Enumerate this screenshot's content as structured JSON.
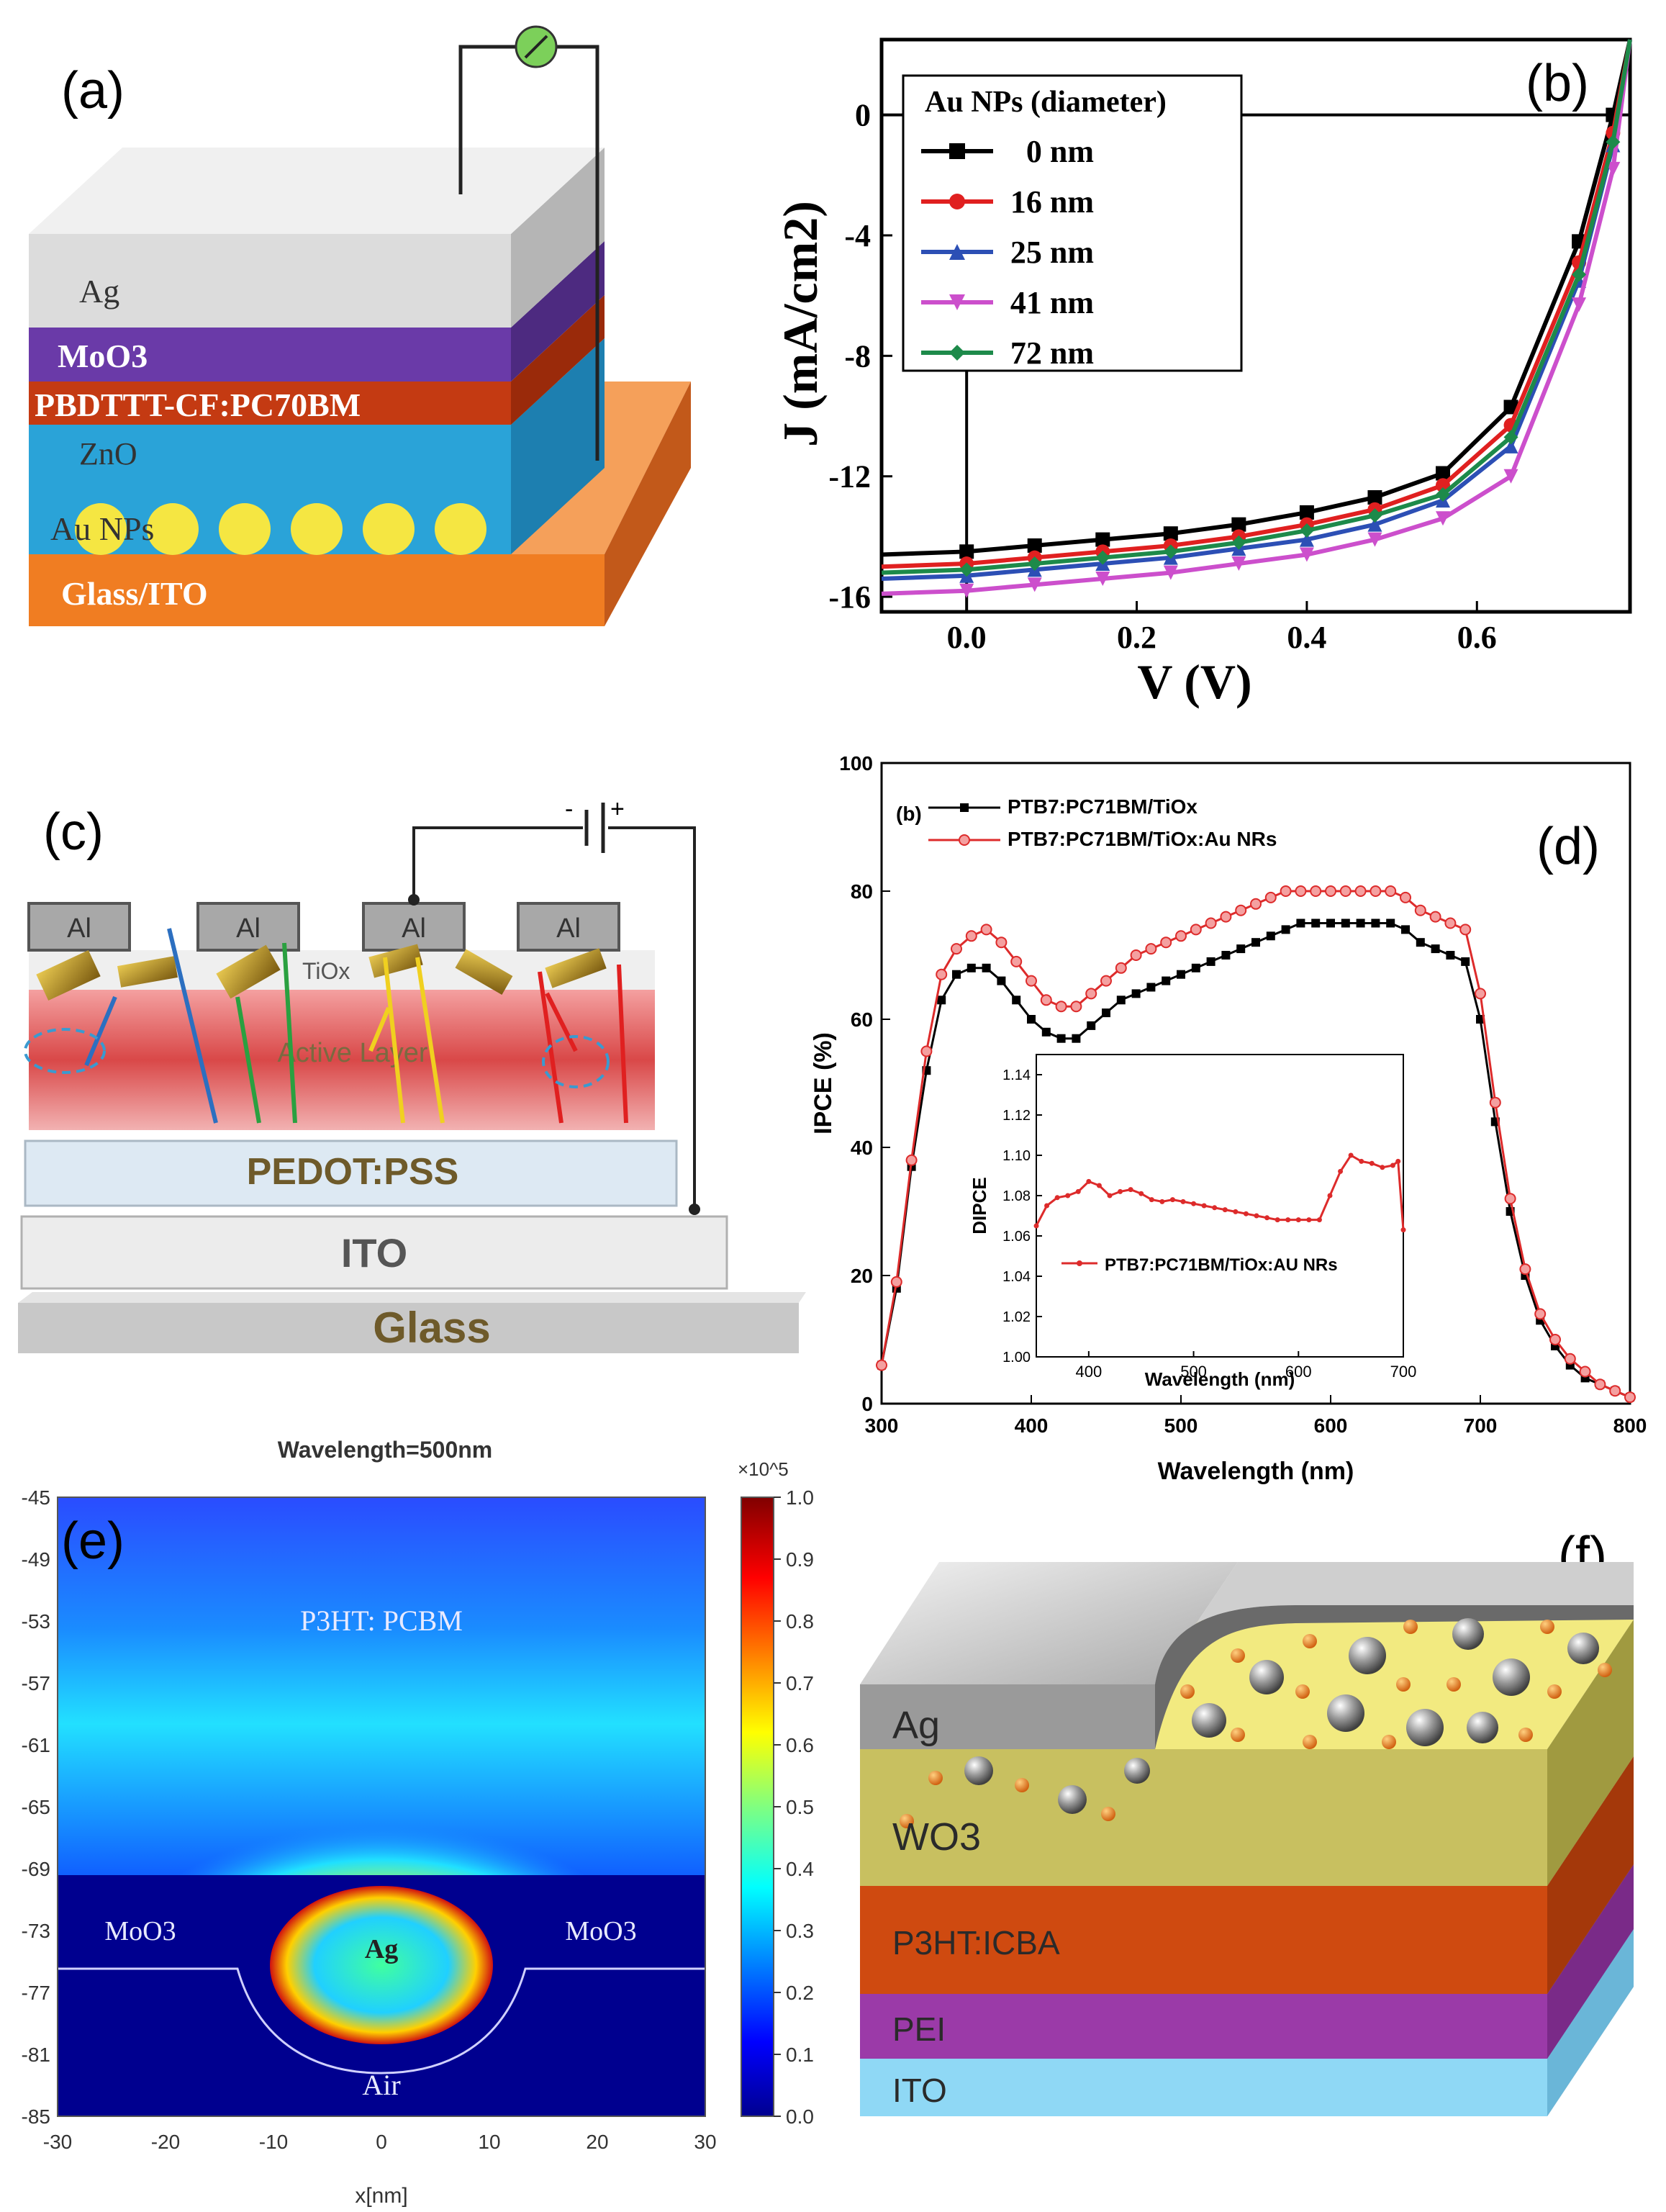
{
  "panel_letters": {
    "a": "(a)",
    "b": "(b)",
    "c": "(c)",
    "d": "(d)",
    "e": "(e)",
    "f": "(f)"
  },
  "panel_a": {
    "layers": [
      "Ag",
      "MoO3",
      "PBDTTT-CF:PC70BM",
      "ZnO",
      "Au NPs",
      "Glass/ITO"
    ],
    "pc_sub": "70",
    "colors": {
      "ag": "#dcdcdc",
      "moo3": "#6a3aa8",
      "active": "#c43a12",
      "zno": "#2aa3d8",
      "glass": "#f07d22",
      "np": "#f5e642"
    }
  },
  "panel_b": {
    "legend_title": "Au NPs (diameter)",
    "xlabel": "V (V)",
    "ylabel": "J (mA/cm2)"
  },
  "panel_c": {
    "electrodes": [
      "Al",
      "Al",
      "Al",
      "Al"
    ],
    "tiox": "TiOx",
    "active": "Active Layer",
    "pedot": "PEDOT:PSS",
    "ito": "ITO",
    "glass": "Glass",
    "battery_minus": "-",
    "battery_plus": "+"
  },
  "panel_d": {
    "tag": "(b)",
    "xlabel": "Wavelength (nm)",
    "ylabel": "IPCE (%)",
    "inset_xlabel": "Wavelength (nm)",
    "inset_ylabel": "DIPCE",
    "inset_legend": "PTB7:PC71BM/TiOx:AU NRs",
    "legend": [
      "PTB7:PC71BM/TiOx",
      "PTB7:PC71BM/TiOx:Au NRs"
    ]
  },
  "panel_e": {
    "title": "Wavelength=500nm",
    "multiplier": "×10^5",
    "xlabel": "x[nm]",
    "labels": {
      "p3ht": "P3HT: PCBM",
      "moo3_left": "MoO3",
      "moo3_right": "MoO3",
      "ag": "Ag",
      "air": "Air"
    }
  },
  "panel_f": {
    "layers": [
      "Ag",
      "WO3",
      "P3HT:ICBA",
      "PEI",
      "ITO"
    ]
  },
  "chart_data": [
    {
      "type": "line",
      "title": "",
      "xlabel": "V (V)",
      "ylabel": "J (mA/cm2)",
      "xlim": [
        -0.1,
        0.78
      ],
      "ylim": [
        -16.5,
        2.5
      ],
      "xticks": [
        0.0,
        0.2,
        0.4,
        0.6
      ],
      "yticks": [
        0,
        -4,
        -8,
        -12,
        -16
      ],
      "legend_title": "Au NPs (diameter)",
      "x": [
        -0.1,
        0.0,
        0.08,
        0.16,
        0.24,
        0.32,
        0.4,
        0.48,
        0.56,
        0.64,
        0.72,
        0.76,
        0.78
      ],
      "series": [
        {
          "name": "0 nm",
          "color": "#000000",
          "marker": "square",
          "values": [
            -14.6,
            -14.5,
            -14.3,
            -14.1,
            -13.9,
            -13.6,
            -13.2,
            -12.7,
            -11.9,
            -9.7,
            -4.2,
            0.0,
            2.5
          ]
        },
        {
          "name": "16 nm",
          "color": "#e02020",
          "marker": "circle",
          "values": [
            -15.0,
            -14.9,
            -14.7,
            -14.5,
            -14.3,
            -14.0,
            -13.6,
            -13.1,
            -12.3,
            -10.3,
            -4.9,
            -0.6,
            2.5
          ]
        },
        {
          "name": "25 nm",
          "color": "#2c4fb5",
          "marker": "triangle-up",
          "values": [
            -15.4,
            -15.3,
            -15.1,
            -14.9,
            -14.7,
            -14.4,
            -14.1,
            -13.6,
            -12.8,
            -11.0,
            -5.5,
            -1.0,
            2.5
          ]
        },
        {
          "name": "41 nm",
          "color": "#cc4fcc",
          "marker": "triangle-down",
          "values": [
            -15.9,
            -15.8,
            -15.6,
            -15.4,
            -15.2,
            -14.9,
            -14.6,
            -14.1,
            -13.4,
            -12.0,
            -6.3,
            -1.8,
            2.5
          ]
        },
        {
          "name": "72 nm",
          "color": "#1d8a4a",
          "marker": "diamond",
          "values": [
            -15.2,
            -15.1,
            -14.9,
            -14.7,
            -14.5,
            -14.2,
            -13.8,
            -13.3,
            -12.6,
            -10.7,
            -5.3,
            -0.9,
            2.5
          ]
        }
      ]
    },
    {
      "type": "line",
      "title": "",
      "xlabel": "Wavelength (nm)",
      "ylabel": "IPCE (%)",
      "xlim": [
        300,
        800
      ],
      "ylim": [
        0,
        100
      ],
      "xticks": [
        300,
        400,
        500,
        600,
        700,
        800
      ],
      "yticks": [
        0,
        20,
        40,
        60,
        80,
        100
      ],
      "x": [
        300,
        310,
        320,
        330,
        340,
        350,
        360,
        370,
        380,
        390,
        400,
        410,
        420,
        430,
        440,
        450,
        460,
        470,
        480,
        490,
        500,
        510,
        520,
        530,
        540,
        550,
        560,
        570,
        580,
        590,
        600,
        610,
        620,
        630,
        640,
        650,
        660,
        670,
        680,
        690,
        700,
        710,
        720,
        730,
        740,
        750,
        760,
        770,
        780,
        790,
        800
      ],
      "series": [
        {
          "name": "PTB7:PC71BM/TiOx",
          "color": "#000000",
          "marker": "square",
          "values": [
            6,
            18,
            37,
            52,
            63,
            67,
            68,
            68,
            66,
            63,
            60,
            58,
            57,
            57,
            59,
            61,
            63,
            64,
            65,
            66,
            67,
            68,
            69,
            70,
            71,
            72,
            73,
            74,
            75,
            75,
            75,
            75,
            75,
            75,
            75,
            74,
            72,
            71,
            70,
            69,
            60,
            44,
            30,
            20,
            13,
            9,
            6,
            4,
            3,
            2,
            1
          ]
        },
        {
          "name": "PTB7:PC71BM/TiOx:Au NRs",
          "color": "#dd2b2b",
          "marker": "circle",
          "values": [
            6,
            19,
            38,
            55,
            67,
            71,
            73,
            74,
            72,
            69,
            66,
            63,
            62,
            62,
            64,
            66,
            68,
            70,
            71,
            72,
            73,
            74,
            75,
            76,
            77,
            78,
            79,
            80,
            80,
            80,
            80,
            80,
            80,
            80,
            80,
            79,
            77,
            76,
            75,
            74,
            64,
            47,
            32,
            21,
            14,
            10,
            7,
            5,
            3,
            2,
            1
          ]
        }
      ]
    },
    {
      "type": "line",
      "title": "",
      "xlabel": "Wavelength (nm)",
      "ylabel": "DIPCE",
      "xlim": [
        350,
        700
      ],
      "ylim": [
        1.0,
        1.15
      ],
      "xticks": [
        400,
        500,
        600,
        700
      ],
      "yticks": [
        1.0,
        1.02,
        1.04,
        1.06,
        1.08,
        1.1,
        1.12,
        1.14
      ],
      "legend": "PTB7:PC71BM/TiOx:AU NRs",
      "x": [
        350,
        360,
        370,
        380,
        390,
        400,
        410,
        420,
        430,
        440,
        450,
        460,
        470,
        480,
        490,
        500,
        510,
        520,
        530,
        540,
        550,
        560,
        570,
        580,
        590,
        600,
        610,
        620,
        630,
        640,
        650,
        660,
        670,
        680,
        690,
        695,
        700
      ],
      "series": [
        {
          "name": "PTB7:PC71BM/TiOx:AU NRs",
          "color": "#dd2b2b",
          "values": [
            1.065,
            1.075,
            1.079,
            1.08,
            1.082,
            1.087,
            1.085,
            1.08,
            1.082,
            1.083,
            1.081,
            1.078,
            1.077,
            1.078,
            1.077,
            1.076,
            1.075,
            1.074,
            1.073,
            1.072,
            1.071,
            1.07,
            1.069,
            1.068,
            1.068,
            1.068,
            1.068,
            1.068,
            1.08,
            1.092,
            1.1,
            1.097,
            1.096,
            1.094,
            1.095,
            1.097,
            1.063
          ]
        }
      ]
    },
    {
      "type": "heatmap",
      "title": "Wavelength=500nm",
      "xlabel": "x[nm]",
      "ylabel": "",
      "xlim": [
        -30,
        30
      ],
      "ylim": [
        -85,
        -45
      ],
      "xticks": [
        -30,
        -20,
        -10,
        0,
        10,
        20,
        30
      ],
      "yticks": [
        -45,
        -49,
        -53,
        -57,
        -61,
        -65,
        -69,
        -73,
        -77,
        -81,
        -85
      ],
      "colorbar": {
        "min": 0.0,
        "max": 1.0,
        "ticks": [
          0.0,
          0.1,
          0.2,
          0.3,
          0.4,
          0.5,
          0.6,
          0.7,
          0.8,
          0.9,
          1.0
        ],
        "multiplier": "×10^5"
      }
    }
  ]
}
